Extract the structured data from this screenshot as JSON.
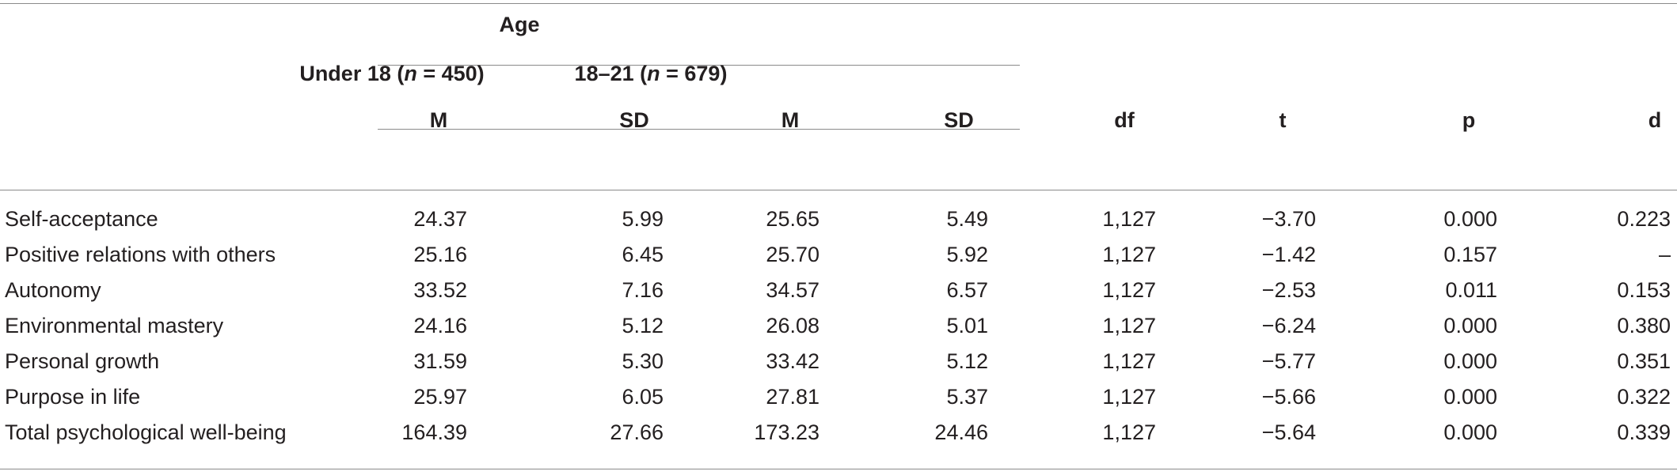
{
  "table": {
    "spanner": "Age",
    "groups": [
      {
        "label_pre": "Under 18 (",
        "n_symbol": "n",
        "label_post": " = 450)"
      },
      {
        "label_pre": "18–21 (",
        "n_symbol": "n",
        "label_post": " = 679)"
      }
    ],
    "columns": {
      "m1": "M",
      "sd1": "SD",
      "m2": "M",
      "sd2": "SD",
      "df": "df",
      "t": "t",
      "p": "p",
      "d": "d"
    },
    "rows": [
      {
        "label": "Self-acceptance",
        "m1": "24.37",
        "sd1": "5.99",
        "m2": "25.65",
        "sd2": "5.49",
        "df": "1,127",
        "t": "−3.70",
        "p": "0.000",
        "d": "0.223"
      },
      {
        "label": "Positive relations with others",
        "m1": "25.16",
        "sd1": "6.45",
        "m2": "25.70",
        "sd2": "5.92",
        "df": "1,127",
        "t": "−1.42",
        "p": "0.157",
        "d": "–"
      },
      {
        "label": "Autonomy",
        "m1": "33.52",
        "sd1": "7.16",
        "m2": "34.57",
        "sd2": "6.57",
        "df": "1,127",
        "t": "−2.53",
        "p": "0.011",
        "d": "0.153"
      },
      {
        "label": "Environmental mastery",
        "m1": "24.16",
        "sd1": "5.12",
        "m2": "26.08",
        "sd2": "5.01",
        "df": "1,127",
        "t": "−6.24",
        "p": "0.000",
        "d": "0.380"
      },
      {
        "label": "Personal growth",
        "m1": "31.59",
        "sd1": "5.30",
        "m2": "33.42",
        "sd2": "5.12",
        "df": "1,127",
        "t": "−5.77",
        "p": "0.000",
        "d": "0.351"
      },
      {
        "label": "Purpose in life",
        "m1": "25.97",
        "sd1": "6.05",
        "m2": "27.81",
        "sd2": "5.37",
        "df": "1,127",
        "t": "−5.66",
        "p": "0.000",
        "d": "0.322"
      },
      {
        "label": "Total psychological well-being",
        "m1": "164.39",
        "sd1": "27.66",
        "m2": "173.23",
        "sd2": "24.46",
        "df": "1,127",
        "t": "−5.64",
        "p": "0.000",
        "d": "0.339"
      }
    ]
  }
}
